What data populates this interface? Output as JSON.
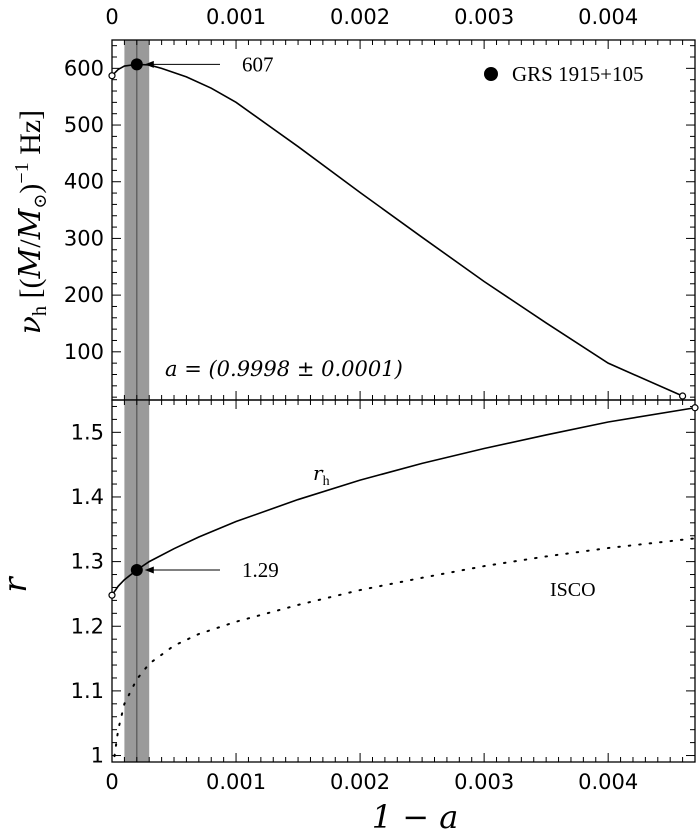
{
  "chart_data": [
    {
      "type": "line",
      "panel": "top",
      "ylabel_parts": [
        "ν",
        "h",
        " [(",
        "M",
        "/",
        "M",
        "⊙",
        ")",
        "−1",
        " Hz]"
      ],
      "xlim": [
        0,
        0.0047
      ],
      "ylim": [
        15,
        650
      ],
      "y_ticks": [
        100,
        200,
        300,
        400,
        500,
        600
      ],
      "y_tick_labels": [
        "100",
        "200",
        "300",
        "400",
        "500",
        "600"
      ],
      "x_ticks_top": [
        0,
        0.001,
        0.002,
        0.003,
        0.004
      ],
      "x_tick_labels_top": [
        "0",
        "0.001",
        "0.002",
        "0.003",
        "0.004"
      ],
      "series": [
        {
          "x": [
            0,
            5e-05,
            0.0001,
            0.0002,
            0.0003,
            0.0004,
            0.0006,
            0.0008,
            0.001,
            0.0015,
            0.002,
            0.0025,
            0.003,
            0.0035,
            0.004,
            0.0046
          ],
          "y": [
            587,
            598,
            604,
            607,
            606,
            600,
            585,
            565,
            540,
            462,
            381,
            302,
            224,
            151,
            80,
            22
          ]
        }
      ],
      "endpoints": [
        {
          "x": 0,
          "y": 587
        },
        {
          "x": 0.0046,
          "y": 22
        }
      ],
      "highlight": {
        "x": 0.0002,
        "y": 607,
        "label": "607"
      },
      "band": {
        "x0": 0.0001,
        "x1": 0.0003
      },
      "legend": {
        "label": "GRS 1915+105",
        "position": "top-right"
      },
      "annotation": "a = (0.9998 ± 0.0001)"
    },
    {
      "type": "line",
      "panel": "bottom",
      "xlabel": "1 − a",
      "ylabel": "r",
      "xlim": [
        0,
        0.0047
      ],
      "ylim": [
        0.99,
        1.55
      ],
      "y_ticks": [
        1,
        1.1,
        1.2,
        1.3,
        1.4,
        1.5
      ],
      "y_tick_labels": [
        "1",
        "1.1",
        "1.2",
        "1.3",
        "1.4",
        "1.5"
      ],
      "x_ticks_bottom": [
        0,
        0.001,
        0.002,
        0.003,
        0.004
      ],
      "x_tick_labels_bottom": [
        "0",
        "0.001",
        "0.002",
        "0.003",
        "0.004"
      ],
      "series": [
        {
          "name": "r_h",
          "style": "solid",
          "x": [
            0,
            5e-05,
            0.0001,
            0.0002,
            0.0003,
            0.0005,
            0.0007,
            0.001,
            0.0015,
            0.002,
            0.0025,
            0.003,
            0.0035,
            0.004,
            0.0047
          ],
          "y": [
            1.248,
            1.262,
            1.272,
            1.287,
            1.3,
            1.32,
            1.338,
            1.362,
            1.396,
            1.426,
            1.452,
            1.475,
            1.496,
            1.516,
            1.538
          ]
        },
        {
          "name": "ISCO",
          "style": "dotted",
          "x": [
            2e-05,
            5e-05,
            0.0001,
            0.0002,
            0.0003,
            0.0005,
            0.0007,
            0.001,
            0.0015,
            0.002,
            0.0025,
            0.003,
            0.0035,
            0.004,
            0.0047
          ],
          "y": [
            0.999,
            1.04,
            1.08,
            1.118,
            1.142,
            1.17,
            1.188,
            1.207,
            1.233,
            1.256,
            1.275,
            1.293,
            1.308,
            1.321,
            1.336
          ]
        }
      ],
      "endpoints": [
        {
          "x": 0,
          "y": 1.248
        },
        {
          "x": 0.0047,
          "y": 1.538
        }
      ],
      "highlight": {
        "x": 0.0002,
        "y": 1.287,
        "label": "1.29"
      },
      "band": {
        "x0": 0.0001,
        "x1": 0.0003
      },
      "labels": {
        "rh_main": "r",
        "rh_sub": "h",
        "isco": "ISCO"
      }
    }
  ]
}
